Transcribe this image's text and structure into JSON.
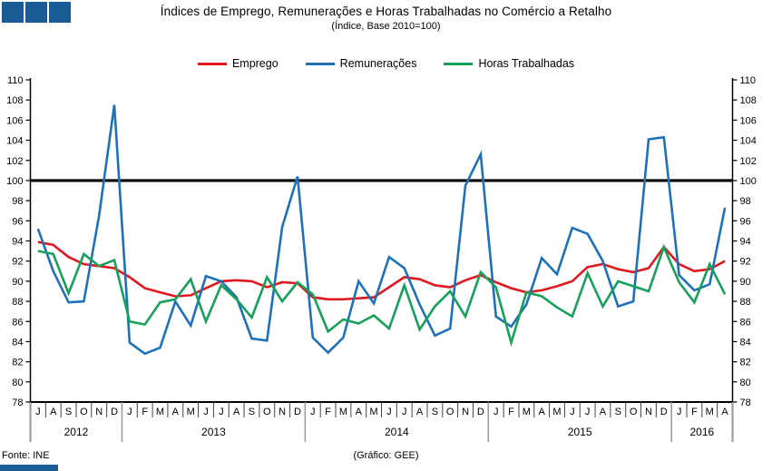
{
  "header": {
    "title": "Índices de Emprego, Remunerações e Horas Trabalhadas no Comércio a Retalho",
    "subtitle": "(Índice, Base 2010=100)"
  },
  "footer": {
    "source": "Fonte: INE",
    "credit": "(Gráfico: GEE)"
  },
  "logo": {
    "color": "#1a5a96",
    "squares": 3
  },
  "chart_data": {
    "type": "line",
    "title": "Índices de Emprego, Remunerações e Horas Trabalhadas no Comércio a Retalho",
    "subtitle": "(Índice, Base 2010=100)",
    "ylim": [
      78,
      110
    ],
    "yticks": [
      78,
      80,
      82,
      84,
      86,
      88,
      90,
      92,
      94,
      96,
      98,
      100,
      102,
      104,
      106,
      108,
      110
    ],
    "reference_line": 100,
    "grid": false,
    "legend_position": "top",
    "x_month_labels": [
      "J",
      "A",
      "S",
      "O",
      "N",
      "D",
      "J",
      "F",
      "M",
      "A",
      "M",
      "J",
      "J",
      "A",
      "S",
      "O",
      "N",
      "D",
      "J",
      "F",
      "M",
      "A",
      "M",
      "J",
      "J",
      "A",
      "S",
      "O",
      "N",
      "D",
      "J",
      "F",
      "M",
      "A",
      "M",
      "J",
      "J",
      "A",
      "S",
      "O",
      "N",
      "D",
      "J",
      "F",
      "M",
      "A"
    ],
    "years": [
      {
        "label": "2012",
        "start": 0,
        "count": 6
      },
      {
        "label": "2013",
        "start": 6,
        "count": 12
      },
      {
        "label": "2014",
        "start": 18,
        "count": 12
      },
      {
        "label": "2015",
        "start": 30,
        "count": 12
      },
      {
        "label": "2016",
        "start": 42,
        "count": 4
      }
    ],
    "series": [
      {
        "name": "Emprego",
        "color": "#e0191f",
        "values": [
          93.9,
          93.6,
          92.4,
          91.7,
          91.5,
          91.3,
          90.4,
          89.3,
          88.9,
          88.5,
          88.6,
          89.3,
          90.0,
          90.1,
          90.0,
          89.4,
          89.9,
          89.8,
          88.4,
          88.2,
          88.2,
          88.3,
          88.4,
          89.4,
          90.4,
          90.2,
          89.6,
          89.4,
          90.1,
          90.6,
          89.9,
          89.3,
          88.9,
          89.1,
          89.5,
          90.0,
          91.4,
          91.7,
          91.2,
          90.9,
          91.3,
          93.4,
          91.7,
          91.0,
          91.2,
          92.0
        ]
      },
      {
        "name": "Remunerações",
        "color": "#1e71b8",
        "values": [
          95.2,
          91.0,
          87.9,
          88.0,
          96.5,
          107.5,
          83.9,
          82.8,
          83.4,
          88.0,
          85.6,
          90.5,
          90.0,
          88.4,
          84.3,
          84.1,
          95.4,
          100.4,
          84.4,
          82.9,
          84.4,
          90.0,
          87.8,
          92.4,
          91.3,
          87.7,
          84.6,
          85.3,
          99.5,
          102.6,
          86.5,
          85.5,
          87.7,
          92.3,
          90.7,
          95.3,
          94.7,
          92.0,
          87.5,
          88.0,
          104.1,
          104.3,
          90.6,
          89.1,
          89.7,
          97.3
        ]
      },
      {
        "name": "Horas Trabalhadas",
        "color": "#16a05a",
        "values": [
          93.0,
          92.7,
          88.8,
          92.7,
          91.5,
          92.1,
          86.0,
          85.7,
          87.9,
          88.2,
          90.2,
          86.0,
          89.6,
          88.2,
          86.4,
          90.4,
          88.0,
          89.9,
          88.7,
          85.0,
          86.2,
          85.8,
          86.6,
          85.3,
          89.6,
          85.2,
          87.5,
          89.0,
          86.5,
          90.9,
          89.4,
          83.9,
          88.9,
          88.5,
          87.4,
          86.5,
          90.8,
          87.5,
          90.0,
          89.5,
          89.0,
          93.4,
          89.9,
          87.9,
          91.7,
          88.7
        ]
      }
    ]
  }
}
